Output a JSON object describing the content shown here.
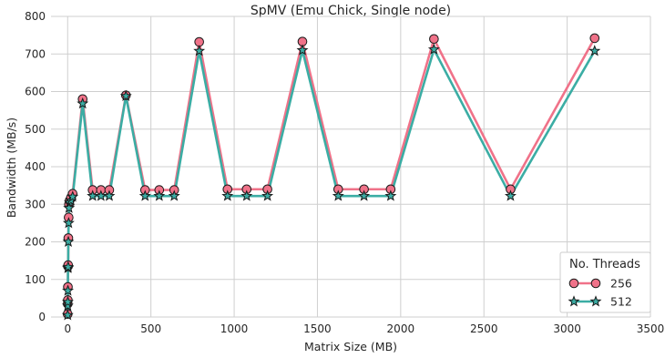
{
  "chart_data": {
    "type": "line",
    "title": "SpMV (Emu Chick, Single node)",
    "xlabel": "Matrix Size (MB)",
    "ylabel": "Bandwidth (MB/s)",
    "xlim": [
      -100,
      3500
    ],
    "ylim": [
      0,
      800
    ],
    "xticks": [
      0,
      500,
      1000,
      1500,
      2000,
      2500,
      3000,
      3500
    ],
    "yticks": [
      0,
      100,
      200,
      300,
      400,
      500,
      600,
      700,
      800
    ],
    "grid": true,
    "legend": {
      "title": "No. Threads",
      "placement": "bottom-right"
    },
    "series": [
      {
        "name": "256",
        "marker": "circle",
        "color": "#f07289",
        "x": [
          0.2,
          0.5,
          1,
          1.5,
          2,
          3,
          4,
          6,
          8,
          12,
          20,
          30,
          90,
          150,
          200,
          250,
          350,
          465,
          550,
          640,
          790,
          960,
          1075,
          1200,
          1410,
          1625,
          1780,
          1940,
          2200,
          2660,
          3165
        ],
        "y": [
          8,
          35,
          45,
          80,
          135,
          138,
          210,
          265,
          300,
          310,
          318,
          328,
          580,
          338,
          338,
          338,
          590,
          338,
          338,
          338,
          732,
          340,
          340,
          340,
          733,
          340,
          340,
          340,
          740,
          340,
          742
        ]
      },
      {
        "name": "512",
        "marker": "star",
        "color": "#3bada4",
        "x": [
          0.2,
          0.5,
          1,
          1.5,
          2,
          3,
          4,
          6,
          8,
          12,
          20,
          30,
          90,
          150,
          200,
          250,
          350,
          465,
          550,
          640,
          790,
          960,
          1075,
          1200,
          1410,
          1625,
          1780,
          1940,
          2200,
          2660,
          3165
        ],
        "y": [
          5,
          30,
          40,
          70,
          130,
          133,
          200,
          250,
          290,
          305,
          310,
          320,
          568,
          322,
          322,
          322,
          588,
          322,
          322,
          322,
          708,
          322,
          322,
          322,
          710,
          322,
          322,
          322,
          712,
          322,
          708
        ]
      }
    ],
    "colors": {
      "axis_text": "#262626",
      "grid": "#cfcfcf"
    }
  }
}
